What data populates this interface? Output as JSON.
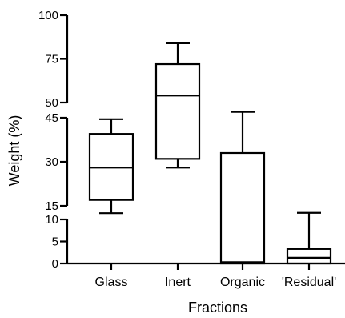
{
  "chart_data": {
    "type": "box",
    "xlabel": "Fractions",
    "ylabel": "Weight (%)",
    "y_axis_broken": true,
    "y_segments": [
      {
        "range": [
          50,
          100
        ],
        "ticks": [
          50,
          75,
          100
        ]
      },
      {
        "range": [
          15,
          45
        ],
        "ticks": [
          15,
          30,
          45
        ]
      },
      {
        "range": [
          0,
          10
        ],
        "ticks": [
          0,
          5,
          10
        ]
      }
    ],
    "categories": [
      "Glass",
      "Inert",
      "Organic",
      "'Residual'"
    ],
    "boxes": [
      {
        "category": "Glass",
        "min": 12.5,
        "q1": 17.0,
        "median": 28.0,
        "q3": 39.5,
        "max": 44.5
      },
      {
        "category": "Inert",
        "min": 28.0,
        "q1": 31.0,
        "median": 54.0,
        "q3": 72.0,
        "max": 84.0
      },
      {
        "category": "Organic",
        "min": 0.0,
        "q1": 0.0,
        "median": 0.3,
        "q3": 33.0,
        "max": 47.0
      },
      {
        "category": "'Residual'",
        "min": 0.0,
        "q1": 0.0,
        "median": 1.3,
        "q3": 3.3,
        "max": 11.5
      }
    ]
  }
}
